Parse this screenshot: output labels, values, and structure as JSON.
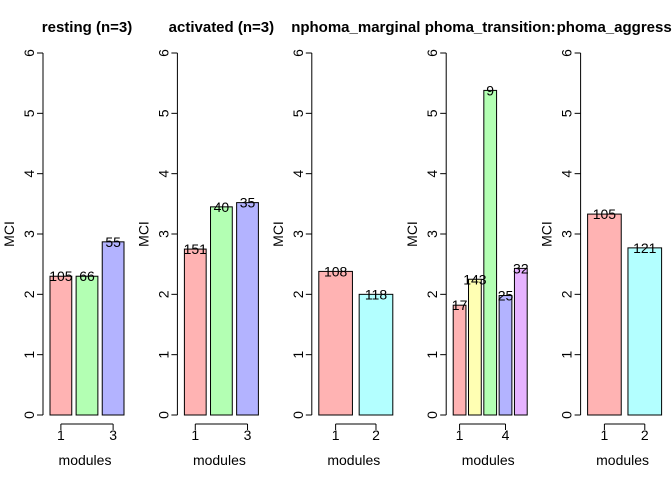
{
  "chart_data": [
    {
      "type": "bar",
      "title": "resting (n=3)",
      "xlabel": "modules",
      "ylabel": "MCI",
      "ylim": [
        0,
        6
      ],
      "yticks": [
        0,
        1,
        2,
        3,
        4,
        5,
        6
      ],
      "xtick_labels": [
        "1",
        "",
        "3"
      ],
      "categories": [
        "1",
        "2",
        "3"
      ],
      "values": [
        2.3,
        2.3,
        2.87
      ],
      "bar_labels": [
        "105",
        "66",
        "55"
      ],
      "colors": [
        "#FFB3B3",
        "#B3FFB3",
        "#B3B3FF"
      ]
    },
    {
      "type": "bar",
      "title": "activated (n=3)",
      "xlabel": "modules",
      "ylabel": "MCI",
      "ylim": [
        0,
        6
      ],
      "yticks": [
        0,
        1,
        2,
        3,
        4,
        5,
        6
      ],
      "xtick_labels": [
        "1",
        "",
        "3"
      ],
      "categories": [
        "1",
        "2",
        "3"
      ],
      "values": [
        2.75,
        3.45,
        3.52
      ],
      "bar_labels": [
        "151",
        "40",
        "35"
      ],
      "colors": [
        "#FFB3B3",
        "#B3FFB3",
        "#B3B3FF"
      ]
    },
    {
      "type": "bar",
      "title": "nphoma_marginal",
      "xlabel": "modules",
      "ylabel": "MCI",
      "ylim": [
        0,
        6
      ],
      "yticks": [
        0,
        1,
        2,
        3,
        4,
        5,
        6
      ],
      "xtick_labels": [
        "1",
        "2"
      ],
      "categories": [
        "1",
        "2"
      ],
      "values": [
        2.38,
        2.0
      ],
      "bar_labels": [
        "108",
        "118"
      ],
      "colors": [
        "#FFB3B3",
        "#B3FFFF"
      ]
    },
    {
      "type": "bar",
      "title": "phoma_transition:",
      "xlabel": "modules",
      "ylabel": "MCI",
      "ylim": [
        0,
        6
      ],
      "yticks": [
        0,
        1,
        2,
        3,
        4,
        5,
        6
      ],
      "xtick_labels": [
        "1",
        "",
        "",
        "4",
        ""
      ],
      "categories": [
        "1",
        "2",
        "3",
        "4",
        "5"
      ],
      "values": [
        1.82,
        2.25,
        5.38,
        1.98,
        2.43
      ],
      "bar_labels": [
        "17",
        "143",
        "9",
        "25",
        "32"
      ],
      "colors": [
        "#FFB3B3",
        "#FFFFB3",
        "#B3FFB3",
        "#B3B3FF",
        "#E6B3FF"
      ]
    },
    {
      "type": "bar",
      "title": "phoma_aggressive",
      "xlabel": "modules",
      "ylabel": "MCI",
      "ylim": [
        0,
        6
      ],
      "yticks": [
        0,
        1,
        2,
        3,
        4,
        5,
        6
      ],
      "xtick_labels": [
        "1",
        "2"
      ],
      "categories": [
        "1",
        "2"
      ],
      "values": [
        3.33,
        2.77
      ],
      "bar_labels": [
        "105",
        "121"
      ],
      "colors": [
        "#FFB3B3",
        "#B3FFFF"
      ]
    }
  ]
}
